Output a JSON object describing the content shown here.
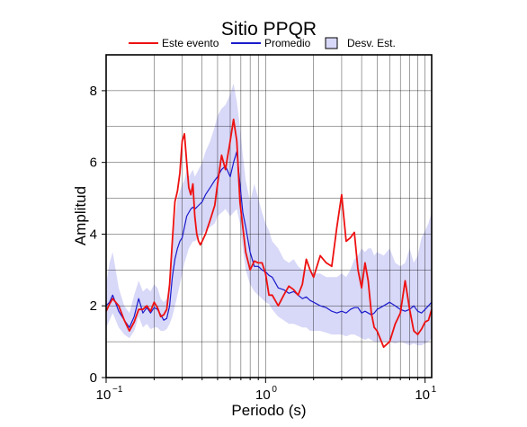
{
  "chart_data": {
    "type": "line",
    "title": "Sitio PPQR",
    "xlabel": "Periodo (s)",
    "ylabel": "Amplitud",
    "x_scale": "log",
    "xlim": [
      0.1,
      11
    ],
    "ylim": [
      0,
      9
    ],
    "grid": true,
    "legend_position": "top",
    "x_ticks": [
      {
        "value": 0.1,
        "base": "10",
        "exp": "−1"
      },
      {
        "value": 1,
        "base": "10",
        "exp": "0"
      },
      {
        "value": 10,
        "base": "10",
        "exp": "1"
      }
    ],
    "y_ticks": [
      {
        "value": 0,
        "label": "0"
      },
      {
        "value": 2,
        "label": "2"
      },
      {
        "value": 4,
        "label": "4"
      },
      {
        "value": 6,
        "label": "6"
      },
      {
        "value": 8,
        "label": "8"
      }
    ],
    "legend": [
      {
        "label": "Este evento",
        "kind": "line",
        "color": "#ee1111"
      },
      {
        "label": "Promedio",
        "kind": "line",
        "color": "#1a1acc"
      },
      {
        "label": "Desv. Est.",
        "kind": "band",
        "color": "#d8d8f8"
      }
    ],
    "series": [
      {
        "name": "Este evento",
        "color": "#ee1111",
        "x": [
          0.1,
          0.105,
          0.11,
          0.12,
          0.13,
          0.14,
          0.15,
          0.16,
          0.17,
          0.18,
          0.19,
          0.2,
          0.21,
          0.22,
          0.23,
          0.24,
          0.25,
          0.26,
          0.27,
          0.28,
          0.29,
          0.3,
          0.31,
          0.32,
          0.33,
          0.34,
          0.35,
          0.36,
          0.37,
          0.38,
          0.39,
          0.4,
          0.42,
          0.45,
          0.48,
          0.5,
          0.53,
          0.56,
          0.6,
          0.63,
          0.66,
          0.69,
          0.72,
          0.75,
          0.8,
          0.85,
          0.9,
          0.95,
          1.0,
          1.05,
          1.1,
          1.2,
          1.3,
          1.4,
          1.5,
          1.6,
          1.7,
          1.8,
          1.9,
          2.0,
          2.2,
          2.4,
          2.6,
          2.8,
          3.0,
          3.2,
          3.4,
          3.6,
          3.8,
          4.0,
          4.2,
          4.4,
          4.6,
          4.8,
          5.0,
          5.5,
          6.0,
          6.5,
          7.0,
          7.5,
          8.0,
          8.5,
          9.0,
          9.5,
          10.0,
          10.5,
          11.0
        ],
        "y": [
          1.85,
          2.05,
          2.2,
          2.0,
          1.6,
          1.3,
          1.55,
          1.9,
          1.9,
          2.0,
          1.85,
          2.1,
          1.95,
          1.7,
          1.75,
          1.9,
          2.6,
          3.8,
          4.9,
          5.2,
          5.7,
          6.6,
          6.8,
          6.0,
          5.3,
          5.1,
          5.4,
          4.5,
          4.0,
          3.8,
          3.7,
          3.8,
          4.0,
          4.4,
          4.8,
          5.4,
          6.2,
          5.8,
          6.6,
          7.2,
          6.6,
          4.9,
          4.2,
          3.5,
          3.0,
          3.25,
          3.2,
          3.2,
          2.9,
          2.3,
          2.3,
          2.0,
          2.3,
          2.55,
          2.45,
          2.3,
          2.6,
          3.3,
          3.0,
          2.8,
          3.4,
          3.2,
          3.1,
          4.2,
          5.1,
          3.8,
          3.9,
          4.05,
          3.0,
          2.5,
          3.2,
          2.7,
          1.8,
          1.4,
          1.3,
          0.85,
          1.0,
          1.5,
          1.8,
          2.7,
          1.9,
          1.3,
          1.2,
          1.35,
          1.55,
          1.6,
          1.9
        ]
      },
      {
        "name": "Promedio",
        "color": "#1a1acc",
        "x": [
          0.1,
          0.105,
          0.11,
          0.12,
          0.13,
          0.14,
          0.15,
          0.16,
          0.17,
          0.18,
          0.19,
          0.2,
          0.21,
          0.22,
          0.23,
          0.24,
          0.25,
          0.26,
          0.27,
          0.28,
          0.29,
          0.3,
          0.31,
          0.32,
          0.33,
          0.34,
          0.35,
          0.36,
          0.37,
          0.38,
          0.39,
          0.4,
          0.42,
          0.45,
          0.48,
          0.5,
          0.53,
          0.56,
          0.6,
          0.63,
          0.66,
          0.69,
          0.72,
          0.75,
          0.8,
          0.85,
          0.9,
          0.95,
          1.0,
          1.05,
          1.1,
          1.2,
          1.3,
          1.4,
          1.5,
          1.6,
          1.7,
          1.8,
          1.9,
          2.0,
          2.2,
          2.4,
          2.6,
          2.8,
          3.0,
          3.2,
          3.4,
          3.6,
          3.8,
          4.0,
          4.2,
          4.4,
          4.6,
          4.8,
          5.0,
          5.5,
          6.0,
          6.5,
          7.0,
          7.5,
          8.0,
          8.5,
          9.0,
          9.5,
          10.0,
          10.5,
          11.0
        ],
        "y": [
          2.0,
          2.1,
          2.3,
          1.85,
          1.6,
          1.4,
          1.7,
          2.2,
          1.8,
          1.95,
          1.8,
          1.95,
          1.9,
          1.75,
          1.6,
          1.65,
          2.0,
          2.8,
          3.3,
          3.6,
          3.8,
          3.9,
          4.2,
          4.5,
          4.6,
          4.7,
          4.75,
          4.7,
          4.75,
          4.8,
          4.85,
          4.9,
          5.1,
          5.3,
          5.5,
          5.6,
          5.8,
          5.9,
          5.6,
          6.0,
          6.3,
          5.4,
          4.6,
          4.2,
          3.5,
          3.1,
          3.1,
          3.0,
          2.95,
          2.85,
          2.8,
          2.5,
          2.45,
          2.35,
          2.4,
          2.3,
          2.2,
          2.25,
          2.15,
          2.1,
          2.0,
          1.95,
          1.85,
          1.8,
          1.85,
          1.8,
          1.9,
          1.95,
          1.95,
          1.8,
          1.85,
          1.8,
          1.75,
          1.8,
          1.9,
          2.0,
          2.1,
          2.0,
          1.9,
          1.85,
          1.9,
          2.0,
          1.85,
          1.8,
          1.9,
          2.0,
          2.1
        ]
      }
    ],
    "band": {
      "name": "Desv. Est.",
      "color": "#d8d8f8",
      "x": [
        0.1,
        0.105,
        0.11,
        0.12,
        0.13,
        0.14,
        0.15,
        0.16,
        0.17,
        0.18,
        0.19,
        0.2,
        0.21,
        0.22,
        0.23,
        0.24,
        0.25,
        0.26,
        0.27,
        0.28,
        0.29,
        0.3,
        0.31,
        0.32,
        0.33,
        0.34,
        0.35,
        0.36,
        0.37,
        0.38,
        0.39,
        0.4,
        0.42,
        0.45,
        0.48,
        0.5,
        0.53,
        0.56,
        0.6,
        0.63,
        0.66,
        0.69,
        0.72,
        0.75,
        0.8,
        0.85,
        0.9,
        0.95,
        1.0,
        1.05,
        1.1,
        1.2,
        1.3,
        1.4,
        1.5,
        1.6,
        1.7,
        1.8,
        1.9,
        2.0,
        2.2,
        2.4,
        2.6,
        2.8,
        3.0,
        3.2,
        3.4,
        3.6,
        3.8,
        4.0,
        4.2,
        4.4,
        4.6,
        4.8,
        5.0,
        5.5,
        6.0,
        6.5,
        7.0,
        7.5,
        8.0,
        8.5,
        9.0,
        9.5,
        10.0,
        10.5,
        11.0
      ],
      "lower": [
        1.4,
        1.6,
        1.8,
        1.4,
        1.2,
        1.1,
        1.3,
        1.7,
        1.4,
        1.5,
        1.35,
        1.4,
        1.4,
        1.3,
        1.3,
        1.35,
        1.5,
        1.7,
        2.0,
        2.3,
        2.6,
        2.9,
        3.2,
        3.4,
        3.6,
        3.7,
        3.8,
        3.8,
        3.85,
        3.9,
        3.95,
        4.0,
        4.1,
        4.2,
        4.3,
        4.5,
        4.6,
        4.7,
        4.5,
        4.6,
        4.7,
        4.3,
        3.6,
        3.0,
        2.6,
        2.4,
        2.3,
        2.2,
        2.1,
        2.05,
        1.9,
        1.7,
        1.6,
        1.5,
        1.5,
        1.45,
        1.4,
        1.4,
        1.3,
        1.3,
        1.3,
        1.25,
        1.2,
        1.2,
        1.2,
        1.15,
        1.2,
        1.2,
        1.15,
        1.1,
        1.05,
        1.1,
        1.05,
        1.0,
        1.0,
        1.0,
        1.0,
        0.95,
        1.0,
        0.95,
        0.9,
        0.95,
        0.9,
        0.9,
        0.95,
        1.0,
        1.1
      ],
      "upper": [
        2.6,
        3.2,
        3.5,
        2.5,
        2.0,
        1.8,
        2.3,
        2.7,
        2.4,
        2.5,
        2.4,
        2.6,
        2.5,
        2.2,
        2.1,
        2.2,
        2.6,
        3.6,
        4.4,
        5.0,
        5.2,
        5.4,
        5.5,
        5.8,
        5.6,
        5.7,
        5.8,
        5.6,
        5.7,
        5.8,
        5.9,
        6.0,
        6.3,
        6.6,
        7.0,
        7.3,
        7.5,
        7.6,
        7.9,
        8.2,
        7.7,
        7.0,
        6.2,
        5.5,
        4.9,
        5.4,
        5.0,
        4.6,
        4.3,
        4.1,
        3.8,
        3.6,
        3.3,
        3.2,
        3.3,
        3.1,
        3.0,
        3.0,
        3.0,
        2.9,
        2.9,
        2.8,
        2.8,
        2.8,
        2.9,
        2.8,
        3.0,
        3.3,
        3.4,
        3.6,
        3.5,
        3.6,
        3.6,
        3.4,
        3.5,
        3.4,
        3.6,
        3.2,
        3.1,
        3.2,
        3.6,
        3.2,
        3.4,
        3.9,
        4.1,
        4.3,
        4.6
      ]
    }
  }
}
